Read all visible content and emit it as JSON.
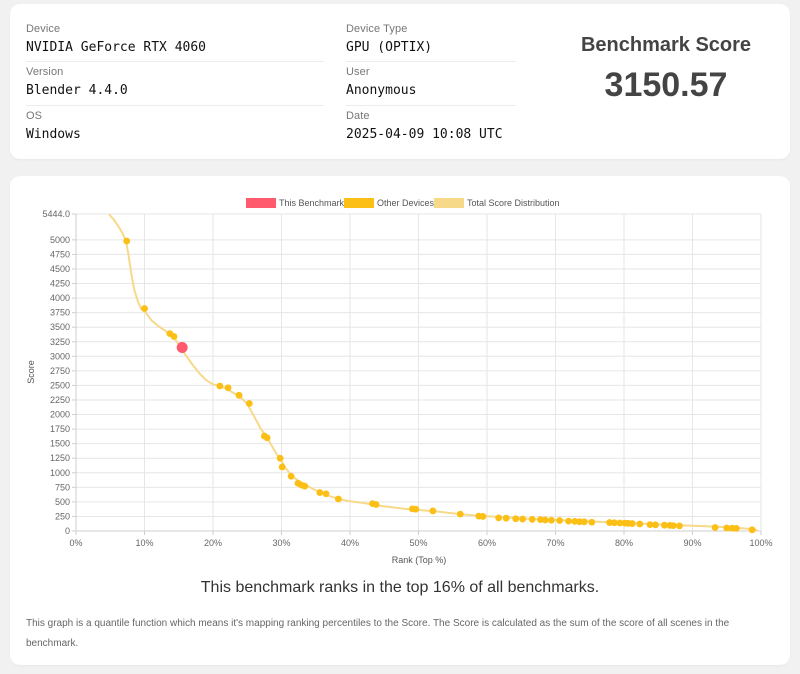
{
  "info": {
    "device": {
      "label": "Device",
      "value": "NVIDIA GeForce RTX 4060"
    },
    "device_type": {
      "label": "Device Type",
      "value": "GPU (OPTIX)"
    },
    "version": {
      "label": "Version",
      "value": "Blender 4.4.0"
    },
    "user": {
      "label": "User",
      "value": "Anonymous"
    },
    "os": {
      "label": "OS",
      "value": "Windows"
    },
    "date": {
      "label": "Date",
      "value": "2025-04-09 10:08 UTC"
    }
  },
  "score": {
    "title": "Benchmark Score",
    "value": "3150.57"
  },
  "chart_data": {
    "type": "line",
    "xlabel": "Rank (Top %)",
    "ylabel": "Score",
    "xlim": [
      0,
      100
    ],
    "ylim": [
      0,
      5444.0
    ],
    "xticks": [
      "0%",
      "10%",
      "20%",
      "30%",
      "40%",
      "50%",
      "60%",
      "70%",
      "80%",
      "90%",
      "100%"
    ],
    "yticks": [
      "0",
      "250",
      "500",
      "750",
      "1000",
      "1250",
      "1500",
      "1750",
      "2000",
      "2250",
      "2500",
      "2750",
      "3000",
      "3250",
      "3500",
      "3750",
      "4000",
      "4250",
      "4500",
      "4750",
      "5000",
      "5444.0"
    ],
    "grid": true,
    "legend_position": "top",
    "legend": [
      {
        "name": "This Benchmark",
        "color": "#ff5a6e"
      },
      {
        "name": "Other Devices",
        "color": "#fbbf15"
      },
      {
        "name": "Total Score Distribution",
        "color": "#f7d98a"
      }
    ],
    "series": [
      {
        "name": "Total Score Distribution",
        "color": "#f7d98a",
        "x": [
          4.8,
          5.5,
          6.2,
          6.8,
          7.3,
          7.7,
          8.1,
          8.5,
          9.0,
          9.5,
          10.0,
          11.0,
          12.0,
          13.0,
          13.8,
          14.5,
          15.3,
          16.0,
          17.0,
          18.0,
          19.0,
          20.0,
          21.0,
          22.0,
          23.0,
          24.0,
          25.0,
          26.0,
          27.0,
          27.8,
          28.5,
          29.3,
          30.0,
          30.6,
          31.5,
          32.5,
          33.5,
          34.5,
          35.5,
          36.5,
          37.5,
          38.5,
          40.0,
          42.0,
          44.0,
          46.0,
          48.0,
          50.0,
          53.0,
          56.0,
          59.0,
          62.0,
          65.0,
          68.0,
          71.0,
          74.0,
          77.0,
          80.0,
          83.0,
          86.0,
          89.0,
          92.0,
          95.0,
          97.0,
          98.5,
          99.5
        ],
        "y": [
          5444.0,
          5350.0,
          5230.0,
          5110.0,
          4980.0,
          4720.0,
          4400.0,
          4150.0,
          3950.0,
          3820.0,
          3780.0,
          3620.0,
          3520.0,
          3440.0,
          3370.0,
          3290.0,
          3150.0,
          3020.0,
          2860.0,
          2710.0,
          2590.0,
          2520.0,
          2490.0,
          2440.0,
          2370.0,
          2300.0,
          2180.0,
          1970.0,
          1750.0,
          1620.0,
          1480.0,
          1320.0,
          1200.0,
          1080.0,
          950.0,
          860.0,
          790.0,
          730.0,
          670.0,
          620.0,
          580.0,
          550.0,
          510.0,
          480.0,
          440.0,
          410.0,
          380.0,
          360.0,
          330.0,
          290.0,
          260.0,
          240.0,
          215.0,
          200.0,
          185.0,
          170.0,
          155.0,
          140.0,
          125.0,
          110.0,
          95.0,
          80.0,
          65.0,
          50.0,
          35.0,
          15.0
        ]
      },
      {
        "name": "Other Devices",
        "color": "#fbbf15",
        "x": [
          7.4,
          10.0,
          13.7,
          14.3,
          21.0,
          22.2,
          23.8,
          25.3,
          27.5,
          27.9,
          29.8,
          30.1,
          31.4,
          32.4,
          32.9,
          33.4,
          35.6,
          36.5,
          38.3,
          43.3,
          43.8,
          49.1,
          49.6,
          52.1,
          56.1,
          58.8,
          59.4,
          61.7,
          62.8,
          64.2,
          65.2,
          66.6,
          67.8,
          68.5,
          69.4,
          70.6,
          71.9,
          72.8,
          73.5,
          74.2,
          75.3,
          77.9,
          78.6,
          79.4,
          80.1,
          80.6,
          81.2,
          82.3,
          83.8,
          84.6,
          85.9,
          86.7,
          87.2,
          88.1,
          93.3,
          95.0,
          95.8,
          96.4,
          98.7
        ],
        "y": [
          4980.0,
          3820.0,
          3390.0,
          3340.0,
          2490.0,
          2460.0,
          2330.0,
          2190.0,
          1630.0,
          1600.0,
          1250.0,
          1100.0,
          940.0,
          820.0,
          790.0,
          770.0,
          660.0,
          640.0,
          550.0,
          470.0,
          455.0,
          380.0,
          375.0,
          345.0,
          290.0,
          255.0,
          250.0,
          225.0,
          220.0,
          210.0,
          205.0,
          200.0,
          195.0,
          190.0,
          185.0,
          180.0,
          170.0,
          165.0,
          160.0,
          158.0,
          150.0,
          145.0,
          142.0,
          138.0,
          135.0,
          132.0,
          128.0,
          120.0,
          110.0,
          106.0,
          100.0,
          96.0,
          92.0,
          88.0,
          60.0,
          52.0,
          48.0,
          45.0,
          20.0
        ]
      },
      {
        "name": "This Benchmark",
        "color": "#ff5a6e",
        "x": [
          15.5
        ],
        "y": [
          3150.57
        ]
      }
    ]
  },
  "rank_text": "This benchmark ranks in the top 16% of all benchmarks.",
  "explanation": "This graph is a quantile function which means it's mapping ranking percentiles to the Score. The Score is calculated as the sum of the score of all scenes in the benchmark."
}
